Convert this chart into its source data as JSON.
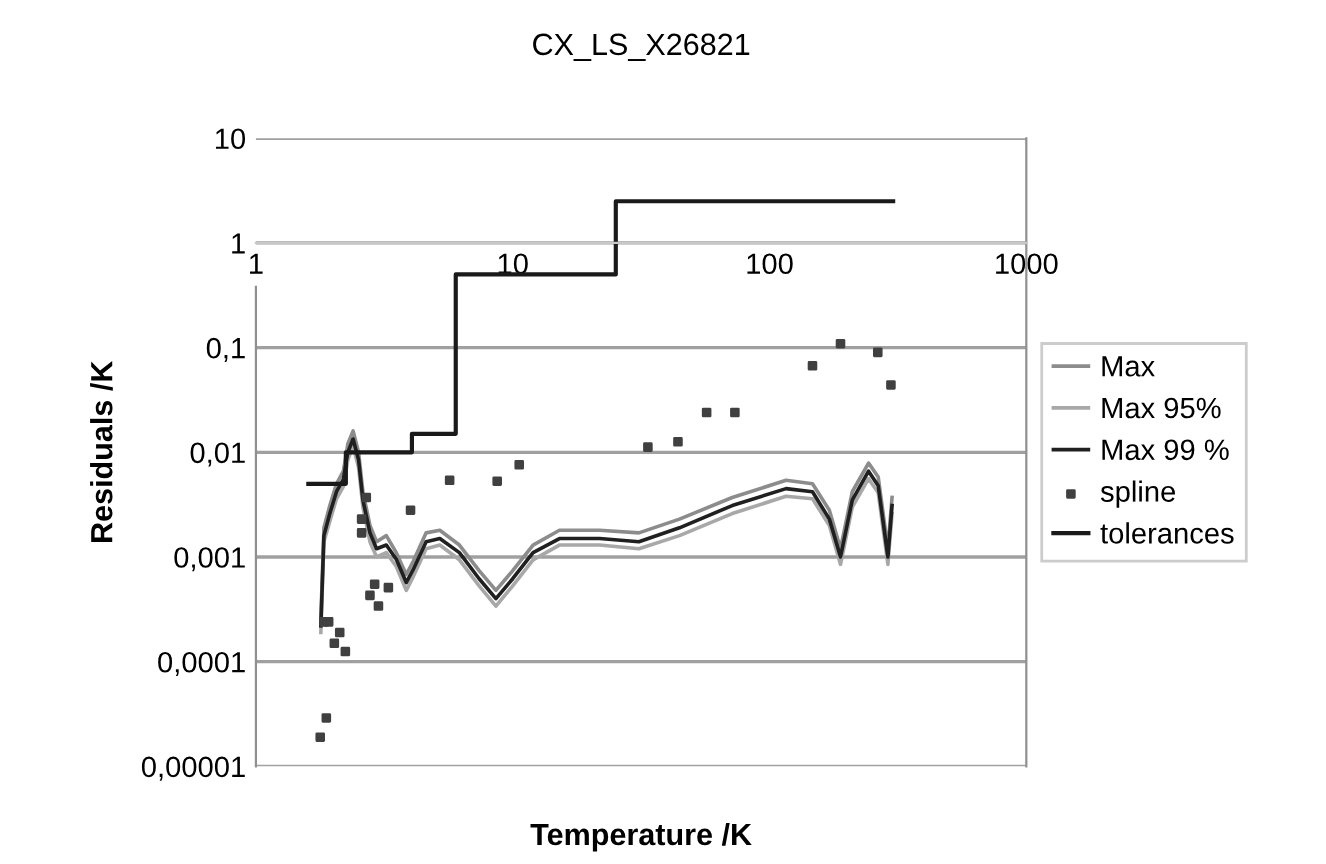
{
  "chart_data": {
    "type": "line",
    "title": "CX_LS_X26821",
    "xlabel": "Temperature /K",
    "ylabel": "Residuals /K",
    "log": "xy",
    "xlim": [
      1,
      1000
    ],
    "xticks": [
      1,
      10,
      100,
      1000
    ],
    "ylim": [
      1e-05,
      10
    ],
    "yticks": [
      {
        "value": 1e-05,
        "label": "0,00001"
      },
      {
        "value": 0.0001,
        "label": "0,0001"
      },
      {
        "value": 0.001,
        "label": "0,001"
      },
      {
        "value": 0.01,
        "label": "0,01"
      },
      {
        "value": 0.1,
        "label": "0,1"
      },
      1,
      10
    ],
    "grid": "y",
    "legend": "right",
    "series": [
      {
        "name": "Max",
        "color": "#8c8c8c",
        "x": [
          1.79,
          1.84,
          1.94,
          2.06,
          2.19,
          2.28,
          2.39,
          2.51,
          2.61,
          2.78,
          2.95,
          3.22,
          3.52,
          3.85,
          4.1,
          4.6,
          5.2,
          6.2,
          7.4,
          8.6,
          10,
          12,
          15.2,
          21.8,
          31,
          44.6,
          71.6,
          116,
          147,
          171,
          189,
          210,
          243,
          265,
          289,
          300
        ],
        "values": [
          0.00026,
          0.0019,
          0.0031,
          0.005,
          0.0066,
          0.012,
          0.016,
          0.01,
          0.0042,
          0.002,
          0.0014,
          0.0016,
          0.0011,
          0.00068,
          0.00091,
          0.0017,
          0.0018,
          0.0013,
          0.00074,
          0.00048,
          0.00074,
          0.0013,
          0.0018,
          0.0018,
          0.0017,
          0.0023,
          0.0037,
          0.0054,
          0.005,
          0.0028,
          0.0012,
          0.0042,
          0.0079,
          0.0058,
          0.0012,
          0.0037
        ]
      },
      {
        "name": "Max 95%",
        "color": "#a8a8a8",
        "x": [
          1.79,
          1.84,
          1.94,
          2.06,
          2.19,
          2.28,
          2.39,
          2.51,
          2.61,
          2.78,
          2.95,
          3.22,
          3.52,
          3.85,
          4.1,
          4.6,
          5.2,
          6.2,
          7.4,
          8.6,
          10,
          12,
          15.2,
          21.8,
          31,
          44.6,
          71.6,
          116,
          147,
          171,
          189,
          210,
          243,
          265,
          289,
          300
        ],
        "values": [
          0.00019,
          0.0014,
          0.0022,
          0.0036,
          0.0047,
          0.0085,
          0.0114,
          0.0072,
          0.003,
          0.0014,
          0.001,
          0.0011,
          0.00081,
          0.00048,
          0.00065,
          0.0012,
          0.0013,
          0.00094,
          0.00053,
          0.00034,
          0.00053,
          0.00094,
          0.0013,
          0.0013,
          0.0012,
          0.0016,
          0.0026,
          0.0038,
          0.0036,
          0.002,
          0.00085,
          0.003,
          0.0056,
          0.0041,
          0.00085,
          0.0026
        ]
      },
      {
        "name": "Max 99 %",
        "color": "#202020",
        "x": [
          1.79,
          1.84,
          1.94,
          2.06,
          2.19,
          2.28,
          2.39,
          2.51,
          2.61,
          2.78,
          2.95,
          3.22,
          3.52,
          3.85,
          4.1,
          4.6,
          5.2,
          6.2,
          7.4,
          8.6,
          10,
          12,
          15.2,
          21.8,
          31,
          44.6,
          71.6,
          116,
          147,
          171,
          189,
          210,
          243,
          265,
          289,
          300
        ],
        "values": [
          0.00022,
          0.0016,
          0.0026,
          0.0042,
          0.0055,
          0.01,
          0.0134,
          0.0085,
          0.0035,
          0.0017,
          0.0012,
          0.0013,
          0.00095,
          0.00057,
          0.00076,
          0.0014,
          0.0015,
          0.0011,
          0.00062,
          0.0004,
          0.00062,
          0.0011,
          0.0015,
          0.0015,
          0.0014,
          0.0019,
          0.0031,
          0.0045,
          0.0042,
          0.0023,
          0.001,
          0.0035,
          0.0066,
          0.0048,
          0.001,
          0.0031
        ]
      },
      {
        "name": "spline",
        "type": "scatter",
        "marker": "square",
        "color": "#404040",
        "x": [
          1.78,
          1.88,
          1.84,
          1.92,
          2.02,
          2.12,
          2.23,
          2.69,
          2.58,
          2.58,
          2.78,
          2.9,
          3.0,
          3.28,
          4.0,
          5.68,
          8.7,
          10.6,
          33.6,
          44,
          56.9,
          73.3,
          147,
          189,
          264,
          297
        ],
        "values": [
          1.9e-05,
          2.9e-05,
          0.00024,
          0.00024,
          0.00015,
          0.00019,
          0.000125,
          0.0037,
          0.0023,
          0.0017,
          0.00043,
          0.00055,
          0.00034,
          0.00051,
          0.0028,
          0.0054,
          0.0053,
          0.0076,
          0.0112,
          0.0126,
          0.024,
          0.024,
          0.067,
          0.109,
          0.09,
          0.044
        ]
      },
      {
        "name": "tolerances",
        "type": "step",
        "color": "#1a1a1a",
        "x": [
          1.6,
          2.24,
          4.05,
          6.0,
          25.2,
          303
        ],
        "values": [
          0.005,
          0.01,
          0.015,
          0.5,
          2.5,
          2.5
        ]
      }
    ]
  }
}
